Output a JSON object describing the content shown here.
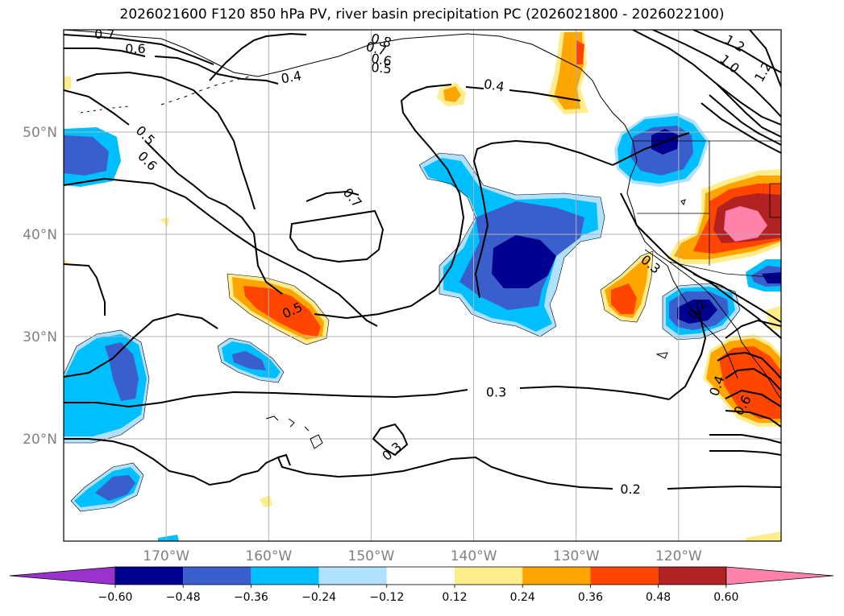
{
  "title": "2026021600 F120 850 hPa PV, river basin precipitation PC (2026021800 - 2026022100)",
  "map": {
    "lon_range": [
      -180,
      -110
    ],
    "lat_range": [
      10,
      60
    ],
    "lat_ticks": [
      {
        "value": 50,
        "label": "50°N"
      },
      {
        "value": 40,
        "label": "40°N"
      },
      {
        "value": 30,
        "label": "30°N"
      },
      {
        "value": 20,
        "label": "20°N"
      }
    ],
    "lon_ticks": [
      {
        "value": -170,
        "label": "170°W"
      },
      {
        "value": -160,
        "label": "160°W"
      },
      {
        "value": -150,
        "label": "150°W"
      },
      {
        "value": -140,
        "label": "140°W"
      },
      {
        "value": -130,
        "label": "130°W"
      },
      {
        "value": -120,
        "label": "120°W"
      }
    ],
    "grid": true,
    "contour_labels": [
      {
        "text": "0.7",
        "lon": -176,
        "lat": 59.6,
        "angle": 0
      },
      {
        "text": "0.6",
        "lon": -173,
        "lat": 58.2,
        "angle": 0
      },
      {
        "text": "0.4",
        "lon": -157.8,
        "lat": 55.4,
        "angle": -10
      },
      {
        "text": "0.8",
        "lon": -149,
        "lat": 59.0,
        "angle": 15
      },
      {
        "text": "0.7",
        "lon": -149.5,
        "lat": 58.2,
        "angle": 15
      },
      {
        "text": "0.6",
        "lon": -149,
        "lat": 57.1,
        "angle": 10
      },
      {
        "text": "0.5",
        "lon": -149,
        "lat": 56.3,
        "angle": 5
      },
      {
        "text": "0.4",
        "lon": -138,
        "lat": 54.6,
        "angle": 10
      },
      {
        "text": "0.5",
        "lon": -172,
        "lat": 49.7,
        "angle": 45
      },
      {
        "text": "0.6",
        "lon": -171.8,
        "lat": 47.2,
        "angle": 45
      },
      {
        "text": "0.7",
        "lon": -151.8,
        "lat": 43.6,
        "angle": 50
      },
      {
        "text": "0.5",
        "lon": -157.7,
        "lat": 32.6,
        "angle": -25
      },
      {
        "text": "0.3",
        "lon": -137.8,
        "lat": 24.6,
        "angle": 0
      },
      {
        "text": "0.3",
        "lon": -148,
        "lat": 18.8,
        "angle": -40
      },
      {
        "text": "0.2",
        "lon": -124.7,
        "lat": 15.1,
        "angle": 0
      },
      {
        "text": "0.3",
        "lon": -122.7,
        "lat": 37.1,
        "angle": 40
      },
      {
        "text": "1.2",
        "lon": -114.5,
        "lat": 58.7,
        "angle": 30
      },
      {
        "text": "1.0",
        "lon": -115,
        "lat": 56.7,
        "angle": 40
      },
      {
        "text": "1.2",
        "lon": -111.8,
        "lat": 55.9,
        "angle": -60
      },
      {
        "text": "0.4",
        "lon": -116.3,
        "lat": 25.2,
        "angle": -70
      },
      {
        "text": "0.2",
        "lon": -118.2,
        "lat": 32.7,
        "angle": -50
      },
      {
        "text": "0.6",
        "lon": -113.8,
        "lat": 23.3,
        "angle": -60
      }
    ]
  },
  "colorbar": {
    "ticks": [
      "−0.60",
      "−0.48",
      "−0.36",
      "−0.24",
      "−0.12",
      "0.12",
      "0.24",
      "0.36",
      "0.48",
      "0.60"
    ],
    "colors": [
      "#9933cc",
      "#000090",
      "#3a5fcd",
      "#00bfff",
      "#b0e2ff",
      "#ffffff",
      "#ffec8b",
      "#ffa500",
      "#ff4500",
      "#b22222",
      "#ff82ab"
    ]
  }
}
